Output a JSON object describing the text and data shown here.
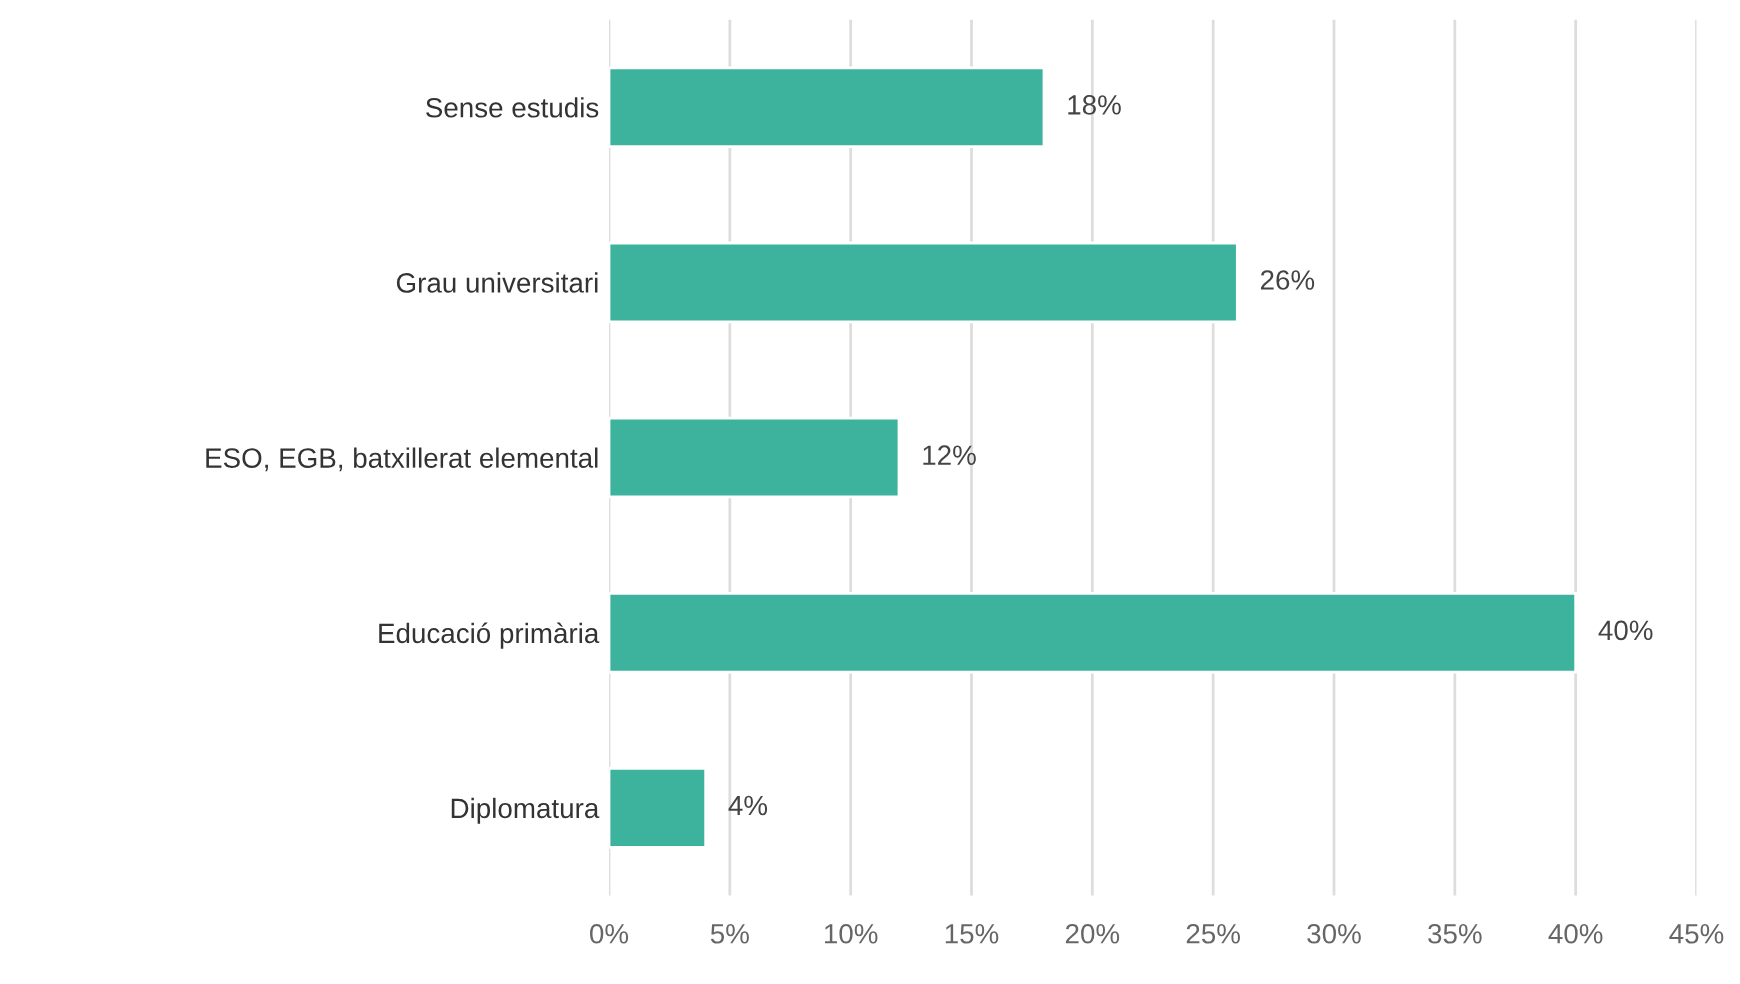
{
  "chart_data": {
    "type": "bar",
    "orientation": "horizontal",
    "categories": [
      "Sense estudis",
      "Grau universitari",
      "ESO, EGB, batxillerat elemental",
      "Educació primària",
      "Diplomatura"
    ],
    "values": [
      18,
      26,
      12,
      40,
      4
    ],
    "value_labels": [
      "18%",
      "26%",
      "12%",
      "40%",
      "4%"
    ],
    "color": "#3db39e",
    "xlim": [
      0,
      45
    ],
    "xticks": [
      {
        "value": 0,
        "label": "0%"
      },
      {
        "value": 5,
        "label": "5%"
      },
      {
        "value": 10,
        "label": "10%"
      },
      {
        "value": 15,
        "label": "15%"
      },
      {
        "value": 20,
        "label": "20%"
      },
      {
        "value": 25,
        "label": "25%"
      },
      {
        "value": 30,
        "label": "30%"
      },
      {
        "value": 35,
        "label": "35%"
      },
      {
        "value": 40,
        "label": "40%"
      },
      {
        "value": 45,
        "label": "45%"
      }
    ],
    "grid": "x",
    "legend": false
  }
}
